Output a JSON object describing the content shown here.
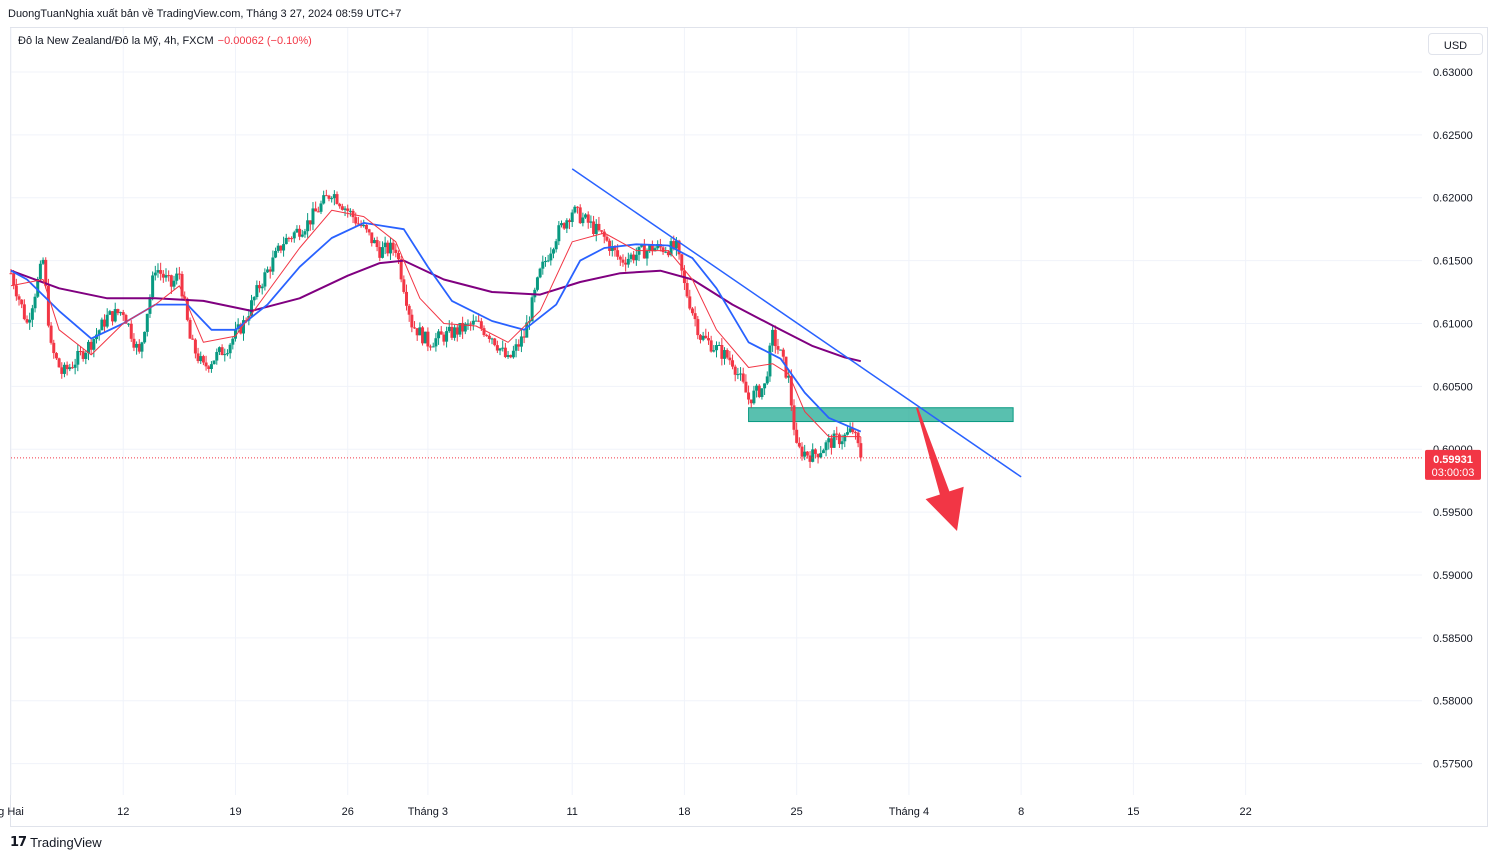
{
  "header": {
    "author_line": "DuongTuanNghia xuất bản về TradingView.com, Tháng 3 27, 2024 08:59 UTC+7"
  },
  "legend": {
    "symbol": "Đô la New Zealand/Đô la Mỹ, 4h, FXCM",
    "change": "−0.00062 (−0.10%)"
  },
  "currency_button": "USD",
  "footer": {
    "brand": "TradingView",
    "logo_icon": "tradingview-logo-icon"
  },
  "price_badge": {
    "price": "0.59931",
    "countdown": "03:00:03",
    "color": "#f23645"
  },
  "colors": {
    "up_candle": "#089981",
    "down_candle": "#f23645",
    "ema_fast": "#f23645",
    "ema_mid": "#2962ff",
    "ema_slow": "#800080",
    "trendline": "#2962ff",
    "zone_fill": "#22ab94",
    "arrow": "#f23645"
  },
  "chart_data": {
    "type": "candlestick",
    "y_axis": {
      "ticks": [
        "0.63000",
        "0.62500",
        "0.62000",
        "0.61500",
        "0.61000",
        "0.60500",
        "0.60000",
        "0.59500",
        "0.59000",
        "0.58500",
        "0.58000",
        "0.57500"
      ],
      "ylim": [
        0.5725,
        0.6335
      ]
    },
    "x_axis": {
      "ticks": [
        {
          "label": "g Hai",
          "day": 0
        },
        {
          "label": "12",
          "day": 7
        },
        {
          "label": "19",
          "day": 14
        },
        {
          "label": "26",
          "day": 21
        },
        {
          "label": "Tháng 3",
          "day": 26
        },
        {
          "label": "11",
          "day": 35
        },
        {
          "label": "18",
          "day": 42
        },
        {
          "label": "25",
          "day": 49
        },
        {
          "label": "Tháng 4",
          "day": 56
        },
        {
          "label": "8",
          "day": 63
        },
        {
          "label": "15",
          "day": 70
        },
        {
          "label": "22",
          "day": 77
        }
      ],
      "xlim": [
        0,
        88
      ]
    },
    "close_series": [
      [
        0.0,
        0.614
      ],
      [
        1.0,
        0.61
      ],
      [
        2.0,
        0.615
      ],
      [
        2.5,
        0.608
      ],
      [
        3.2,
        0.606
      ],
      [
        4.0,
        0.607
      ],
      [
        5.0,
        0.6085
      ],
      [
        6.0,
        0.6105
      ],
      [
        7.0,
        0.611
      ],
      [
        8.0,
        0.6075
      ],
      [
        9.0,
        0.6145
      ],
      [
        10.0,
        0.613
      ],
      [
        10.5,
        0.614
      ],
      [
        11.2,
        0.6085
      ],
      [
        12.0,
        0.6065
      ],
      [
        13.5,
        0.6082
      ],
      [
        14.5,
        0.61
      ],
      [
        15.5,
        0.613
      ],
      [
        17.0,
        0.6165
      ],
      [
        18.5,
        0.618
      ],
      [
        20.0,
        0.6205
      ],
      [
        21.0,
        0.619
      ],
      [
        22.0,
        0.6175
      ],
      [
        23.0,
        0.6158
      ],
      [
        24.0,
        0.616
      ],
      [
        25.0,
        0.61
      ],
      [
        26.0,
        0.6085
      ],
      [
        27.0,
        0.609
      ],
      [
        28.0,
        0.6095
      ],
      [
        29.0,
        0.61
      ],
      [
        30.0,
        0.609
      ],
      [
        31.0,
        0.607
      ],
      [
        32.0,
        0.609
      ],
      [
        33.0,
        0.614
      ],
      [
        34.0,
        0.617
      ],
      [
        35.0,
        0.619
      ],
      [
        36.0,
        0.618
      ],
      [
        37.0,
        0.6168
      ],
      [
        38.0,
        0.615
      ],
      [
        39.0,
        0.6155
      ],
      [
        40.0,
        0.616
      ],
      [
        41.5,
        0.616
      ],
      [
        42.0,
        0.613
      ],
      [
        43.0,
        0.609
      ],
      [
        44.0,
        0.608
      ],
      [
        45.0,
        0.607
      ],
      [
        46.0,
        0.604
      ],
      [
        47.0,
        0.605
      ],
      [
        47.5,
        0.609
      ],
      [
        48.0,
        0.6075
      ],
      [
        48.5,
        0.6055
      ],
      [
        49.0,
        0.6
      ],
      [
        50.0,
        0.5995
      ],
      [
        51.0,
        0.6005
      ],
      [
        52.0,
        0.601
      ],
      [
        52.5,
        0.6015
      ],
      [
        53.0,
        0.5995
      ]
    ],
    "ema_fast_series": [
      [
        0.0,
        0.613
      ],
      [
        2.0,
        0.6135
      ],
      [
        3.0,
        0.6095
      ],
      [
        5.0,
        0.6075
      ],
      [
        7.0,
        0.61
      ],
      [
        9.0,
        0.6115
      ],
      [
        10.5,
        0.613
      ],
      [
        12.0,
        0.6085
      ],
      [
        14.0,
        0.609
      ],
      [
        16.0,
        0.6125
      ],
      [
        18.0,
        0.616
      ],
      [
        20.0,
        0.619
      ],
      [
        22.0,
        0.6185
      ],
      [
        24.0,
        0.6165
      ],
      [
        25.5,
        0.612
      ],
      [
        27.0,
        0.61
      ],
      [
        29.0,
        0.6098
      ],
      [
        31.0,
        0.6085
      ],
      [
        33.0,
        0.611
      ],
      [
        35.0,
        0.6165
      ],
      [
        37.0,
        0.6172
      ],
      [
        39.0,
        0.6158
      ],
      [
        41.0,
        0.6158
      ],
      [
        42.5,
        0.6135
      ],
      [
        44.0,
        0.6095
      ],
      [
        46.0,
        0.6065
      ],
      [
        47.5,
        0.6068
      ],
      [
        48.5,
        0.606
      ],
      [
        49.5,
        0.603
      ],
      [
        51.0,
        0.601
      ],
      [
        53.0,
        0.601
      ]
    ],
    "ema_mid_series": [
      [
        0.0,
        0.6142
      ],
      [
        1.0,
        0.6135
      ],
      [
        3.0,
        0.611
      ],
      [
        5.0,
        0.6088
      ],
      [
        7.0,
        0.61
      ],
      [
        9.0,
        0.6115
      ],
      [
        11.0,
        0.6115
      ],
      [
        12.5,
        0.6095
      ],
      [
        14.0,
        0.6095
      ],
      [
        16.0,
        0.6115
      ],
      [
        18.0,
        0.6145
      ],
      [
        20.0,
        0.6168
      ],
      [
        22.0,
        0.618
      ],
      [
        24.5,
        0.6175
      ],
      [
        26.0,
        0.6145
      ],
      [
        27.5,
        0.6118
      ],
      [
        30.0,
        0.6102
      ],
      [
        32.0,
        0.6095
      ],
      [
        34.0,
        0.6115
      ],
      [
        35.5,
        0.615
      ],
      [
        37.0,
        0.616
      ],
      [
        39.0,
        0.6163
      ],
      [
        41.0,
        0.6162
      ],
      [
        42.5,
        0.6152
      ],
      [
        44.0,
        0.6128
      ],
      [
        46.0,
        0.6085
      ],
      [
        48.0,
        0.6072
      ],
      [
        49.5,
        0.6045
      ],
      [
        51.0,
        0.6025
      ],
      [
        53.0,
        0.6014
      ]
    ],
    "ema_slow_series": [
      [
        0.0,
        0.6142
      ],
      [
        3.0,
        0.6128
      ],
      [
        6.0,
        0.612
      ],
      [
        9.0,
        0.612
      ],
      [
        12.0,
        0.6118
      ],
      [
        15.0,
        0.611
      ],
      [
        18.0,
        0.612
      ],
      [
        21.0,
        0.6138
      ],
      [
        23.0,
        0.6148
      ],
      [
        24.5,
        0.615
      ],
      [
        27.0,
        0.6135
      ],
      [
        30.0,
        0.6125
      ],
      [
        33.0,
        0.6123
      ],
      [
        35.5,
        0.6133
      ],
      [
        38.0,
        0.614
      ],
      [
        40.5,
        0.6142
      ],
      [
        42.5,
        0.6135
      ],
      [
        45.0,
        0.6115
      ],
      [
        48.0,
        0.6095
      ],
      [
        50.0,
        0.6082
      ],
      [
        52.0,
        0.6073
      ],
      [
        53.0,
        0.607
      ]
    ],
    "trendline": [
      [
        35.0,
        0.6223
      ],
      [
        63.0,
        0.5978
      ]
    ],
    "zone": {
      "x": [
        46.0,
        62.5
      ],
      "y": [
        0.6022,
        0.6033
      ]
    },
    "forecast_arrow": [
      [
        56.5,
        0.6033
      ],
      [
        59.0,
        0.5935
      ]
    ],
    "last_price": 0.59931
  }
}
